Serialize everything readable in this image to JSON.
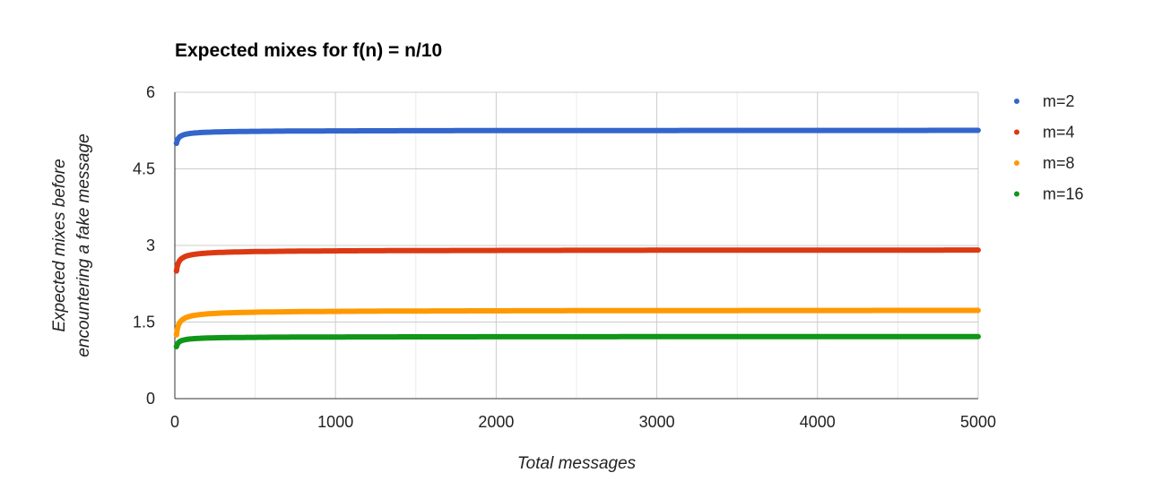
{
  "chart_data": {
    "type": "scatter",
    "title": "Expected mixes for f(n) = n/10",
    "xlabel": "Total messages",
    "ylabel": [
      "Expected mixes before",
      "encountering a fake message"
    ],
    "xlim": [
      0,
      5000
    ],
    "ylim": [
      0,
      6
    ],
    "x_ticks": [
      0,
      1000,
      2000,
      3000,
      4000,
      5000
    ],
    "x_tick_labels": [
      "0",
      "1000",
      "2000",
      "3000",
      "4000",
      "5000"
    ],
    "y_ticks": [
      0,
      1.5,
      3,
      4.5,
      6
    ],
    "y_tick_labels": [
      "0",
      "1.5",
      "3",
      "4.5",
      "6"
    ],
    "grid": true,
    "legend_position": "right",
    "series": [
      {
        "name": "m=2",
        "color": "#3366cc",
        "start": 5.0,
        "asymptote": 5.26
      },
      {
        "name": "m=4",
        "color": "#dc3912",
        "start": 2.5,
        "asymptote": 2.92
      },
      {
        "name": "m=8",
        "color": "#ff9900",
        "start": 1.25,
        "asymptote": 1.74
      },
      {
        "name": "m=16",
        "color": "#109618",
        "start": 1.02,
        "asymptote": 1.22
      }
    ]
  }
}
